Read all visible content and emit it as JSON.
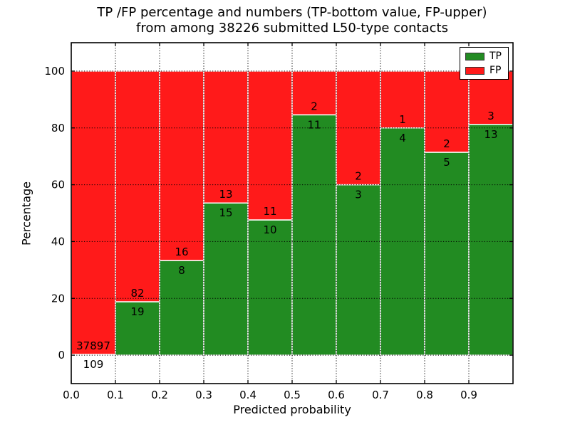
{
  "title": {
    "line1": "TP /FP percentage and numbers (TP-bottom value, FP-upper)",
    "line2": "from among 38226 submitted L50-type contacts"
  },
  "chart_data": {
    "type": "bar",
    "subtype": "stacked-percentage",
    "title": "TP /FP percentage and numbers (TP-bottom value, FP-upper) from among 38226 submitted L50-type contacts",
    "xlabel": "Predicted probability",
    "ylabel": "Percentage",
    "total_contacts": 38226,
    "grid": true,
    "ylim": [
      -10,
      110
    ],
    "xtick_labels": [
      "0.0",
      "0.1",
      "0.2",
      "0.3",
      "0.4",
      "0.5",
      "0.6",
      "0.7",
      "0.8",
      "0.9"
    ],
    "ytick_values": [
      0,
      20,
      40,
      60,
      80,
      100
    ],
    "bin_edges": [
      0.0,
      0.1,
      0.2,
      0.3,
      0.4,
      0.5,
      0.6,
      0.7,
      0.8,
      0.9,
      1.0
    ],
    "series": [
      {
        "name": "TP",
        "color": "#228b22",
        "counts": [
          109,
          19,
          8,
          15,
          10,
          11,
          3,
          4,
          5,
          13
        ]
      },
      {
        "name": "FP",
        "color": "#ff1a1a",
        "counts": [
          37897,
          82,
          16,
          13,
          11,
          2,
          2,
          1,
          2,
          3
        ]
      }
    ],
    "tp_percentages": [
      0.29,
      18.81,
      33.33,
      53.57,
      47.62,
      84.62,
      60.0,
      80.0,
      71.43,
      81.25
    ],
    "bins": [
      {
        "range": "0.0-0.1",
        "tp": 109,
        "fp": 37897
      },
      {
        "range": "0.1-0.2",
        "tp": 19,
        "fp": 82
      },
      {
        "range": "0.2-0.3",
        "tp": 8,
        "fp": 16
      },
      {
        "range": "0.3-0.4",
        "tp": 15,
        "fp": 13
      },
      {
        "range": "0.4-0.5",
        "tp": 10,
        "fp": 11
      },
      {
        "range": "0.5-0.6",
        "tp": 11,
        "fp": 2
      },
      {
        "range": "0.6-0.7",
        "tp": 3,
        "fp": 2
      },
      {
        "range": "0.7-0.8",
        "tp": 4,
        "fp": 1
      },
      {
        "range": "0.8-0.9",
        "tp": 5,
        "fp": 2
      },
      {
        "range": "0.9-1.0",
        "tp": 13,
        "fp": 3
      }
    ],
    "legend": {
      "position": "upper-right",
      "entries": [
        {
          "label": "TP",
          "color": "#228b22"
        },
        {
          "label": "FP",
          "color": "#ff1a1a"
        }
      ]
    }
  }
}
